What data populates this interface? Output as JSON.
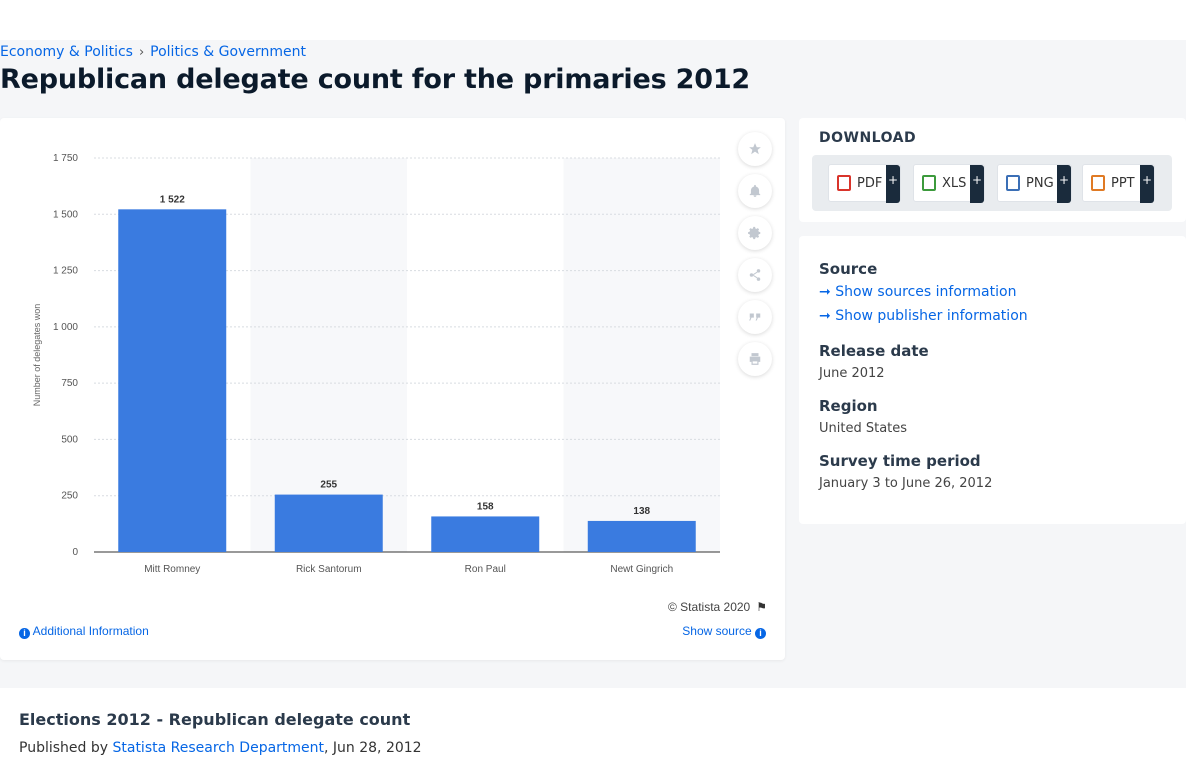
{
  "breadcrumb": [
    "Economy & Politics",
    "Politics & Government"
  ],
  "page_title": "Republican delegate count for the primaries 2012",
  "chart_data": {
    "type": "bar",
    "categories": [
      "Mitt Romney",
      "Rick Santorum",
      "Ron Paul",
      "Newt Gingrich"
    ],
    "values": [
      1522,
      255,
      158,
      138
    ],
    "data_labels": [
      "1 522",
      "255",
      "158",
      "138"
    ],
    "ylabel": "Number of delegates won",
    "xlabel": "",
    "ylim": [
      0,
      1750
    ],
    "yticks": [
      0,
      250,
      500,
      750,
      1000,
      1250,
      1500,
      1750
    ],
    "ytick_labels": [
      "0",
      "250",
      "500",
      "750",
      "1 000",
      "1 250",
      "1 500",
      "1 750"
    ],
    "grid": true,
    "bar_color": "#3a7be0"
  },
  "tools": [
    "star-icon",
    "bell-icon",
    "gear-icon",
    "share-icon",
    "quote-icon",
    "print-icon"
  ],
  "copyright": "© Statista 2020",
  "additional_info": "Additional Information",
  "show_source": "Show source",
  "download": {
    "title": "DOWNLOAD",
    "buttons": [
      {
        "label": "PDF",
        "color": "#d9342b"
      },
      {
        "label": "XLS",
        "color": "#3c9a3c"
      },
      {
        "label": "PNG",
        "color": "#3b6fb6"
      },
      {
        "label": "PPT",
        "color": "#e07a24"
      }
    ],
    "plus": "+"
  },
  "meta": {
    "source_label": "Source",
    "show_sources": "Show sources information",
    "show_publisher": "Show publisher information",
    "release_label": "Release date",
    "release_value": "June 2012",
    "region_label": "Region",
    "region_value": "United States",
    "survey_label": "Survey time period",
    "survey_value": "January 3 to June 26, 2012"
  },
  "bottom": {
    "title": "Elections 2012 - Republican delegate count",
    "published_by": "Published by",
    "publisher": "Statista Research Department",
    "date": ", Jun 28, 2012"
  }
}
